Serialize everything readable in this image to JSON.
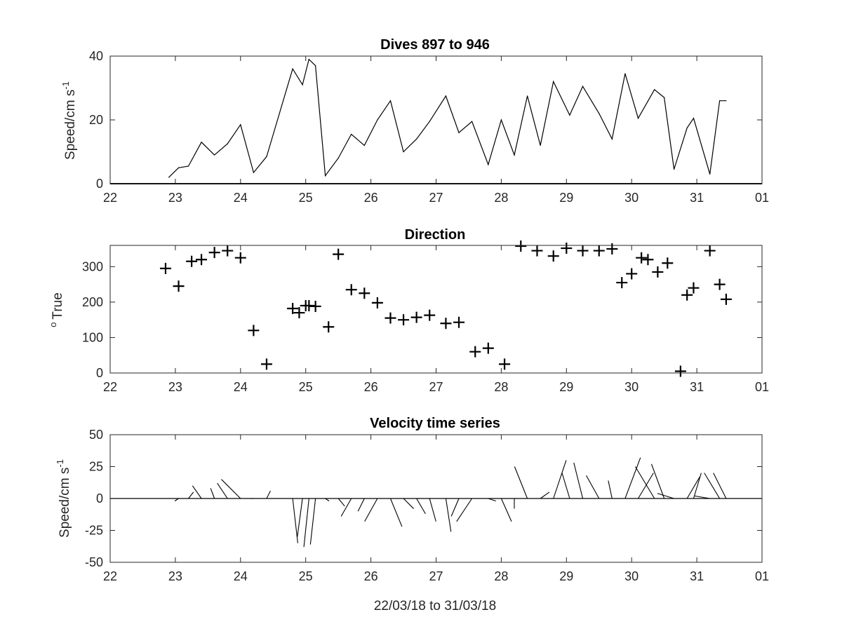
{
  "chart_data": [
    {
      "type": "line",
      "title": "Dives 897 to 946",
      "ylabel": "Speed/cm s",
      "ylabel_exponent": "-1",
      "xlabel": "",
      "x_ticks": [
        "22",
        "23",
        "24",
        "25",
        "26",
        "27",
        "28",
        "29",
        "30",
        "31",
        "01"
      ],
      "y_ticks": [
        "0",
        "20",
        "40"
      ],
      "xlim": [
        22,
        32
      ],
      "ylim": [
        0,
        40
      ],
      "grid": false,
      "x": [
        22.9,
        23.05,
        23.2,
        23.4,
        23.6,
        23.8,
        24.0,
        24.2,
        24.4,
        24.8,
        24.95,
        25.05,
        25.15,
        25.3,
        25.5,
        25.7,
        25.9,
        26.1,
        26.3,
        26.5,
        26.7,
        26.9,
        27.15,
        27.35,
        27.55,
        27.8,
        28.0,
        28.2,
        28.4,
        28.6,
        28.8,
        29.05,
        29.25,
        29.5,
        29.7,
        29.9,
        30.1,
        30.35,
        30.5,
        30.65,
        30.85,
        30.95,
        31.2,
        31.35,
        31.45
      ],
      "y": [
        2,
        5,
        5.5,
        13,
        9,
        12.5,
        18.5,
        3.5,
        8.5,
        36,
        31,
        39,
        37,
        2.5,
        8,
        15.5,
        12,
        20,
        26,
        10,
        14,
        19.5,
        27.5,
        16,
        19.5,
        6,
        20,
        9,
        27.5,
        12,
        32,
        21.5,
        30.5,
        22,
        14,
        34.5,
        20.5,
        29.5,
        27,
        4.5,
        17.5,
        20.5,
        3,
        26,
        26
      ]
    },
    {
      "type": "scatter",
      "title": "Direction",
      "ylabel": "True",
      "ylabel_prefix": "o",
      "xlabel": "",
      "marker": "+",
      "x_ticks": [
        "22",
        "23",
        "24",
        "25",
        "26",
        "27",
        "28",
        "29",
        "30",
        "31",
        "01"
      ],
      "y_ticks": [
        "0",
        "100",
        "200",
        "300"
      ],
      "xlim": [
        22,
        32
      ],
      "ylim": [
        0,
        360
      ],
      "grid": false,
      "x": [
        22.85,
        23.05,
        23.25,
        23.4,
        23.6,
        23.8,
        24.0,
        24.2,
        24.4,
        24.8,
        24.9,
        25.0,
        25.05,
        25.15,
        25.35,
        25.5,
        25.7,
        25.9,
        26.1,
        26.3,
        26.5,
        26.7,
        26.9,
        27.15,
        27.35,
        27.6,
        27.8,
        28.05,
        28.3,
        28.55,
        28.8,
        29.0,
        29.25,
        29.5,
        29.7,
        29.85,
        30.0,
        30.15,
        30.25,
        30.4,
        30.55,
        30.75,
        30.85,
        30.95,
        31.2,
        31.35,
        31.45
      ],
      "y": [
        295,
        245,
        315,
        320,
        340,
        345,
        325,
        120,
        25,
        182,
        170,
        190,
        190,
        188,
        130,
        335,
        235,
        225,
        198,
        155,
        150,
        157,
        163,
        140,
        143,
        60,
        70,
        25,
        358,
        345,
        330,
        352,
        345,
        345,
        350,
        255,
        280,
        325,
        320,
        285,
        310,
        5,
        220,
        240,
        345,
        250,
        208
      ]
    },
    {
      "type": "quiver",
      "title": "Velocity time series",
      "ylabel": "Speed/cm s",
      "ylabel_exponent": "-1",
      "xlabel": "22/03/18 to 31/03/18",
      "x_ticks": [
        "22",
        "23",
        "24",
        "25",
        "26",
        "27",
        "28",
        "29",
        "30",
        "31",
        "01"
      ],
      "y_ticks": [
        "-50",
        "-25",
        "0",
        "25",
        "50"
      ],
      "xlim": [
        22,
        32
      ],
      "ylim": [
        -50,
        50
      ],
      "grid": false,
      "x": [
        22.9,
        23.05,
        23.2,
        23.4,
        23.6,
        23.8,
        24.0,
        24.2,
        24.4,
        24.8,
        24.95,
        25.05,
        25.15,
        25.3,
        25.5,
        25.7,
        25.9,
        26.1,
        26.3,
        26.5,
        26.7,
        26.9,
        27.15,
        27.35,
        27.55,
        27.8,
        28.0,
        28.2,
        28.4,
        28.6,
        28.8,
        29.05,
        29.25,
        29.5,
        29.7,
        29.9,
        30.1,
        30.35,
        30.5,
        30.65,
        30.85,
        30.95,
        31.2,
        31.35,
        31.45
      ],
      "u": [
        -1,
        -3,
        4,
        -7,
        -3,
        -8,
        -15,
        -3,
        3,
        4,
        -4,
        -4,
        -4,
        3,
        5,
        -8,
        -5,
        -10,
        9,
        8,
        7,
        5,
        4,
        -6,
        -12,
        6,
        8,
        0,
        -10,
        7,
        10,
        -6,
        -7,
        -10,
        -3,
        12,
        12,
        -15,
        -10,
        -13,
        10,
        6,
        -12,
        -12,
        -10
      ],
      "v": [
        0,
        -2,
        5,
        10,
        8,
        12,
        15,
        0,
        6,
        -35,
        -30,
        -38,
        -36,
        -2,
        -6,
        -14,
        -10,
        -18,
        -22,
        -8,
        -12,
        -18,
        -26,
        -14,
        -18,
        -2,
        -18,
        -8,
        25,
        5,
        30,
        20,
        28,
        18,
        14,
        32,
        20,
        25,
        27,
        4,
        17,
        20,
        2,
        20,
        20
      ]
    }
  ]
}
